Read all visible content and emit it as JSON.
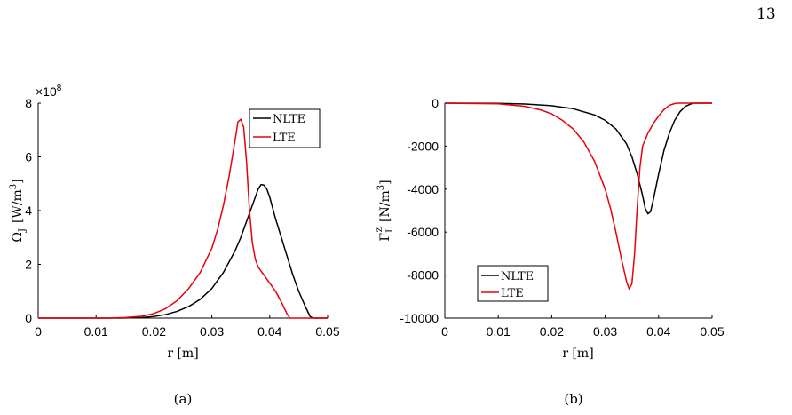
{
  "page": {
    "number": "13"
  },
  "captions": [
    "(a)",
    "(b)"
  ],
  "colors": {
    "NLTE": "#000000",
    "LTE": "#e8000b"
  },
  "chart_data": [
    {
      "type": "line",
      "panel": "(a)",
      "xlabel": "r [m]",
      "ylabel": "Ω_J [W/m³]",
      "ylabel_parts": {
        "main": "Ω",
        "sub": "J",
        "unit": "[W/m",
        "sup": "3",
        "close": "]"
      },
      "y_multiplier": "×10⁸",
      "y_multiplier_parts": {
        "base": "×10",
        "exp": "8"
      },
      "xlim": [
        0,
        0.05
      ],
      "ylim": [
        0,
        8
      ],
      "y_scale_factor": 100000000,
      "xticks": [
        "0",
        "0.01",
        "0.02",
        "0.03",
        "0.04",
        "0.05"
      ],
      "yticks": [
        "0",
        "2",
        "4",
        "6",
        "8"
      ],
      "legend_position": "top-right",
      "series": [
        {
          "name": "NLTE",
          "color": "#000000",
          "points": [
            [
              0,
              0
            ],
            [
              0.014,
              0
            ],
            [
              0.018,
              0.02
            ],
            [
              0.02,
              0.06
            ],
            [
              0.022,
              0.13
            ],
            [
              0.024,
              0.25
            ],
            [
              0.026,
              0.43
            ],
            [
              0.028,
              0.7
            ],
            [
              0.03,
              1.1
            ],
            [
              0.032,
              1.7
            ],
            [
              0.034,
              2.5
            ],
            [
              0.035,
              3.0
            ],
            [
              0.036,
              3.6
            ],
            [
              0.037,
              4.2
            ],
            [
              0.038,
              4.8
            ],
            [
              0.0385,
              4.97
            ],
            [
              0.039,
              4.95
            ],
            [
              0.0395,
              4.8
            ],
            [
              0.04,
              4.5
            ],
            [
              0.041,
              3.7
            ],
            [
              0.042,
              3.0
            ],
            [
              0.043,
              2.3
            ],
            [
              0.044,
              1.6
            ],
            [
              0.045,
              1.0
            ],
            [
              0.046,
              0.5
            ],
            [
              0.047,
              0.05
            ],
            [
              0.0475,
              0
            ],
            [
              0.05,
              0
            ]
          ]
        },
        {
          "name": "LTE",
          "color": "#e8000b",
          "points": [
            [
              0,
              0
            ],
            [
              0.012,
              0
            ],
            [
              0.015,
              0.02
            ],
            [
              0.018,
              0.07
            ],
            [
              0.02,
              0.17
            ],
            [
              0.022,
              0.35
            ],
            [
              0.024,
              0.65
            ],
            [
              0.026,
              1.1
            ],
            [
              0.028,
              1.7
            ],
            [
              0.03,
              2.6
            ],
            [
              0.031,
              3.3
            ],
            [
              0.032,
              4.2
            ],
            [
              0.033,
              5.3
            ],
            [
              0.034,
              6.6
            ],
            [
              0.0345,
              7.3
            ],
            [
              0.035,
              7.4
            ],
            [
              0.0355,
              7.1
            ],
            [
              0.036,
              5.8
            ],
            [
              0.0365,
              4.0
            ],
            [
              0.037,
              2.8
            ],
            [
              0.0375,
              2.2
            ],
            [
              0.038,
              1.9
            ],
            [
              0.039,
              1.6
            ],
            [
              0.04,
              1.3
            ],
            [
              0.041,
              1.0
            ],
            [
              0.042,
              0.6
            ],
            [
              0.043,
              0.15
            ],
            [
              0.0435,
              0
            ],
            [
              0.05,
              0
            ]
          ]
        }
      ]
    },
    {
      "type": "line",
      "panel": "(b)",
      "xlabel": "r [m]",
      "ylabel": "F_L^z [N/m³]",
      "ylabel_parts": {
        "main": "F",
        "sub": "L",
        "supz": "z",
        "unit": "[N/m",
        "sup": "3",
        "close": "]"
      },
      "xlim": [
        0,
        0.05
      ],
      "ylim": [
        -10000,
        0
      ],
      "xticks": [
        "0",
        "0.01",
        "0.02",
        "0.03",
        "0.04",
        "0.05"
      ],
      "yticks": [
        "0",
        "-2000",
        "-4000",
        "-6000",
        "-8000",
        "-10000"
      ],
      "legend_position": "bottom-left",
      "series": [
        {
          "name": "NLTE",
          "color": "#000000",
          "points": [
            [
              0,
              0
            ],
            [
              0.01,
              -10
            ],
            [
              0.015,
              -40
            ],
            [
              0.02,
              -120
            ],
            [
              0.024,
              -260
            ],
            [
              0.028,
              -550
            ],
            [
              0.03,
              -800
            ],
            [
              0.032,
              -1200
            ],
            [
              0.034,
              -1900
            ],
            [
              0.035,
              -2500
            ],
            [
              0.036,
              -3300
            ],
            [
              0.037,
              -4300
            ],
            [
              0.0375,
              -4900
            ],
            [
              0.038,
              -5150
            ],
            [
              0.0385,
              -5050
            ],
            [
              0.039,
              -4500
            ],
            [
              0.04,
              -3300
            ],
            [
              0.041,
              -2200
            ],
            [
              0.042,
              -1400
            ],
            [
              0.043,
              -800
            ],
            [
              0.044,
              -400
            ],
            [
              0.045,
              -150
            ],
            [
              0.046,
              -40
            ],
            [
              0.0465,
              0
            ],
            [
              0.05,
              0
            ]
          ]
        },
        {
          "name": "LTE",
          "color": "#e8000b",
          "points": [
            [
              0,
              0
            ],
            [
              0.01,
              -30
            ],
            [
              0.015,
              -150
            ],
            [
              0.018,
              -320
            ],
            [
              0.02,
              -500
            ],
            [
              0.022,
              -800
            ],
            [
              0.024,
              -1200
            ],
            [
              0.026,
              -1800
            ],
            [
              0.028,
              -2700
            ],
            [
              0.03,
              -4000
            ],
            [
              0.031,
              -4900
            ],
            [
              0.032,
              -6000
            ],
            [
              0.033,
              -7200
            ],
            [
              0.034,
              -8300
            ],
            [
              0.0345,
              -8650
            ],
            [
              0.035,
              -8400
            ],
            [
              0.0355,
              -7000
            ],
            [
              0.036,
              -4800
            ],
            [
              0.0365,
              -3000
            ],
            [
              0.037,
              -2000
            ],
            [
              0.038,
              -1400
            ],
            [
              0.039,
              -950
            ],
            [
              0.04,
              -600
            ],
            [
              0.041,
              -300
            ],
            [
              0.042,
              -100
            ],
            [
              0.043,
              -20
            ],
            [
              0.0435,
              0
            ],
            [
              0.05,
              0
            ]
          ]
        }
      ]
    }
  ]
}
